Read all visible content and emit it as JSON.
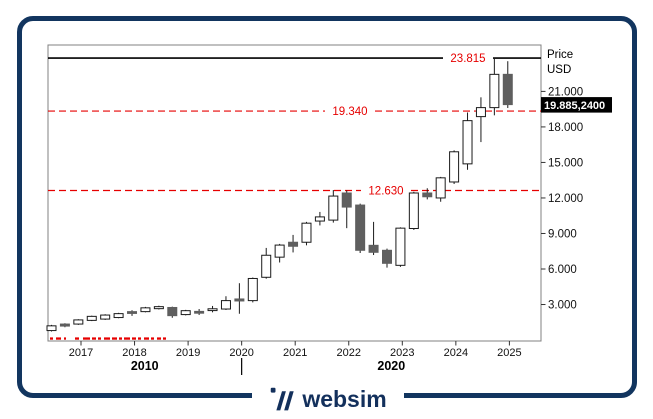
{
  "frame": {
    "border_color": "#12355f"
  },
  "brand": {
    "name": "websim",
    "color": "#13305c"
  },
  "chart_data": {
    "type": "candlestick",
    "title": "",
    "y_axis": {
      "title_lines": [
        "Price",
        "USD"
      ],
      "ticks": [
        {
          "value": 21,
          "label": "21.000"
        },
        {
          "value": 18,
          "label": "18.000"
        },
        {
          "value": 15,
          "label": "15.000"
        },
        {
          "value": 12,
          "label": "12.000"
        },
        {
          "value": 9,
          "label": "9.000"
        },
        {
          "value": 6,
          "label": "6.000"
        },
        {
          "value": 3,
          "label": "3.000"
        }
      ],
      "range": [
        0,
        25
      ],
      "side": "right"
    },
    "x_axis": {
      "year_labels": [
        "2017",
        "2018",
        "2019",
        "2020",
        "2021",
        "2022",
        "2023",
        "2024",
        "2025"
      ],
      "decade_labels": [
        {
          "label": "2010"
        },
        {
          "label": "2020"
        }
      ],
      "decade_divider_year": 2020,
      "visible_range_years": [
        2016.38,
        2025.59
      ]
    },
    "grid": "off",
    "levels": [
      {
        "value": 23.815,
        "label": "23.815",
        "style": "solid",
        "line_color": "#000000",
        "label_color": "#e60000",
        "label_x": 468
      },
      {
        "value": 19.34,
        "label": "19.340",
        "style": "dashed",
        "line_color": "#e60000",
        "label_color": "#e60000",
        "label_x": 350
      },
      {
        "value": 12.63,
        "label": "12.630",
        "style": "dashed",
        "line_color": "#e60000",
        "label_color": "#e60000",
        "label_x": 386
      }
    ],
    "last_price": {
      "label": "19.885,2400",
      "value": 19.8852,
      "badge_bg": "#000000",
      "badge_text_color": "#ffffff"
    },
    "colors": {
      "up_fill": "#ffffff",
      "up_stroke": "#1a1a1a",
      "down_fill": "#5f5f5f",
      "wick": "#1a1a1a",
      "axis": "#808080",
      "red": "#e60000"
    },
    "footnote": {
      "type": "clipped-red-text-marks",
      "color": "#e60000"
    },
    "candles": [
      {
        "period": "2016 Q3",
        "o": 0.8,
        "h": 1.28,
        "l": 0.72,
        "c": 1.2
      },
      {
        "period": "2016 Q4",
        "o": 1.35,
        "h": 1.42,
        "l": 1.08,
        "c": 1.18
      },
      {
        "period": "2017 Q1",
        "o": 1.35,
        "h": 1.76,
        "l": 1.28,
        "c": 1.7
      },
      {
        "period": "2017 Q2",
        "o": 1.66,
        "h": 2.06,
        "l": 1.6,
        "c": 2.0
      },
      {
        "period": "2017 Q3",
        "o": 1.77,
        "h": 2.18,
        "l": 1.7,
        "c": 2.11
      },
      {
        "period": "2017 Q4",
        "o": 1.9,
        "h": 2.3,
        "l": 1.84,
        "c": 2.23
      },
      {
        "period": "2018 Q1",
        "o": 2.4,
        "h": 2.52,
        "l": 2.04,
        "c": 2.25
      },
      {
        "period": "2018 Q2",
        "o": 2.4,
        "h": 2.8,
        "l": 2.34,
        "c": 2.72
      },
      {
        "period": "2018 Q3",
        "o": 2.65,
        "h": 2.9,
        "l": 2.58,
        "c": 2.82
      },
      {
        "period": "2018 Q4",
        "o": 2.75,
        "h": 2.82,
        "l": 1.88,
        "c": 2.06
      },
      {
        "period": "2019 Q1",
        "o": 2.15,
        "h": 2.55,
        "l": 2.08,
        "c": 2.48
      },
      {
        "period": "2019 Q2",
        "o": 2.42,
        "h": 2.62,
        "l": 2.12,
        "c": 2.35
      },
      {
        "period": "2019 Q3",
        "o": 2.6,
        "h": 2.88,
        "l": 2.34,
        "c": 2.64
      },
      {
        "period": "2019 Q4",
        "o": 2.62,
        "h": 3.7,
        "l": 2.54,
        "c": 3.33
      },
      {
        "period": "2020 Q1",
        "o": 3.47,
        "h": 4.8,
        "l": 2.22,
        "c": 3.3
      },
      {
        "period": "2020 Q2",
        "o": 3.33,
        "h": 5.28,
        "l": 3.18,
        "c": 5.2
      },
      {
        "period": "2020 Q3",
        "o": 5.3,
        "h": 7.78,
        "l": 5.18,
        "c": 7.16
      },
      {
        "period": "2020 Q4",
        "o": 7.0,
        "h": 8.12,
        "l": 6.55,
        "c": 8.02
      },
      {
        "period": "2021 Q1",
        "o": 8.26,
        "h": 8.88,
        "l": 7.4,
        "c": 7.92
      },
      {
        "period": "2021 Q2",
        "o": 8.26,
        "h": 9.98,
        "l": 8.0,
        "c": 9.87
      },
      {
        "period": "2021 Q3",
        "o": 10.05,
        "h": 10.82,
        "l": 9.68,
        "c": 10.4
      },
      {
        "period": "2021 Q4",
        "o": 10.13,
        "h": 12.67,
        "l": 9.92,
        "c": 12.16
      },
      {
        "period": "2022 Q1",
        "o": 12.42,
        "h": 12.63,
        "l": 9.45,
        "c": 11.23
      },
      {
        "period": "2022 Q2",
        "o": 11.4,
        "h": 11.52,
        "l": 7.35,
        "c": 7.58
      },
      {
        "period": "2022 Q3",
        "o": 8.0,
        "h": 9.98,
        "l": 7.18,
        "c": 7.41
      },
      {
        "period": "2022 Q4",
        "o": 7.58,
        "h": 7.72,
        "l": 6.12,
        "c": 6.48
      },
      {
        "period": "2023 Q1",
        "o": 6.31,
        "h": 9.52,
        "l": 6.18,
        "c": 9.45
      },
      {
        "period": "2023 Q2",
        "o": 9.42,
        "h": 12.52,
        "l": 9.3,
        "c": 12.42
      },
      {
        "period": "2023 Q3",
        "o": 12.42,
        "h": 12.82,
        "l": 11.88,
        "c": 12.1
      },
      {
        "period": "2023 Q4",
        "o": 12.0,
        "h": 13.78,
        "l": 11.68,
        "c": 13.7
      },
      {
        "period": "2024 Q1",
        "o": 13.35,
        "h": 16.02,
        "l": 13.18,
        "c": 15.9
      },
      {
        "period": "2024 Q2",
        "o": 14.88,
        "h": 19.22,
        "l": 14.38,
        "c": 18.53
      },
      {
        "period": "2024 Q3",
        "o": 18.87,
        "h": 20.5,
        "l": 16.72,
        "c": 19.63
      },
      {
        "period": "2024 Q4",
        "o": 19.63,
        "h": 23.815,
        "l": 18.98,
        "c": 22.44
      },
      {
        "period": "2025 Q1",
        "o": 22.44,
        "h": 23.55,
        "l": 19.6,
        "c": 19.885
      }
    ]
  }
}
